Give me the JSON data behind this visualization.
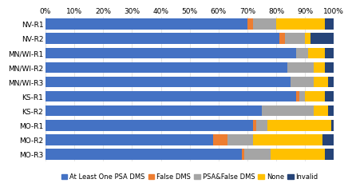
{
  "categories": [
    "NV-R1",
    "NV-R2",
    "MN/WI-R1",
    "MN/WI-R2",
    "MN/WI-R3",
    "KS-R1",
    "KS-R2",
    "MO-R1",
    "MO-R2",
    "MO-R3"
  ],
  "series": {
    "At Least One PSA DMS": [
      70,
      81,
      87,
      84,
      85,
      87,
      75,
      72,
      58,
      68
    ],
    "False DMS": [
      2,
      2,
      0,
      0,
      0,
      1,
      0,
      1,
      5,
      1
    ],
    "PSA&False DMS": [
      8,
      7,
      4,
      9,
      8,
      2,
      18,
      4,
      9,
      9
    ],
    "None": [
      17,
      2,
      6,
      4,
      5,
      7,
      5,
      22,
      24,
      19
    ],
    "Invalid": [
      3,
      8,
      3,
      3,
      2,
      3,
      2,
      1,
      4,
      3
    ]
  },
  "colors": {
    "At Least One PSA DMS": "#4472C4",
    "False DMS": "#ED7D31",
    "PSA&False DMS": "#A5A5A5",
    "None": "#FFC000",
    "Invalid": "#264478"
  },
  "legend_order": [
    "At Least One PSA DMS",
    "False DMS",
    "PSA&False DMS",
    "None",
    "Invalid"
  ],
  "xlim": [
    0,
    100
  ],
  "xtick_labels": [
    "0%",
    "10%",
    "20%",
    "30%",
    "40%",
    "50%",
    "60%",
    "70%",
    "80%",
    "90%",
    "100%"
  ],
  "xtick_values": [
    0,
    10,
    20,
    30,
    40,
    50,
    60,
    70,
    80,
    90,
    100
  ],
  "background_color": "#ffffff",
  "grid_color": "#d9d9d9",
  "bar_height": 0.75,
  "legend_fontsize": 6.0,
  "tick_fontsize": 6.5,
  "label_fontsize": 6.5
}
